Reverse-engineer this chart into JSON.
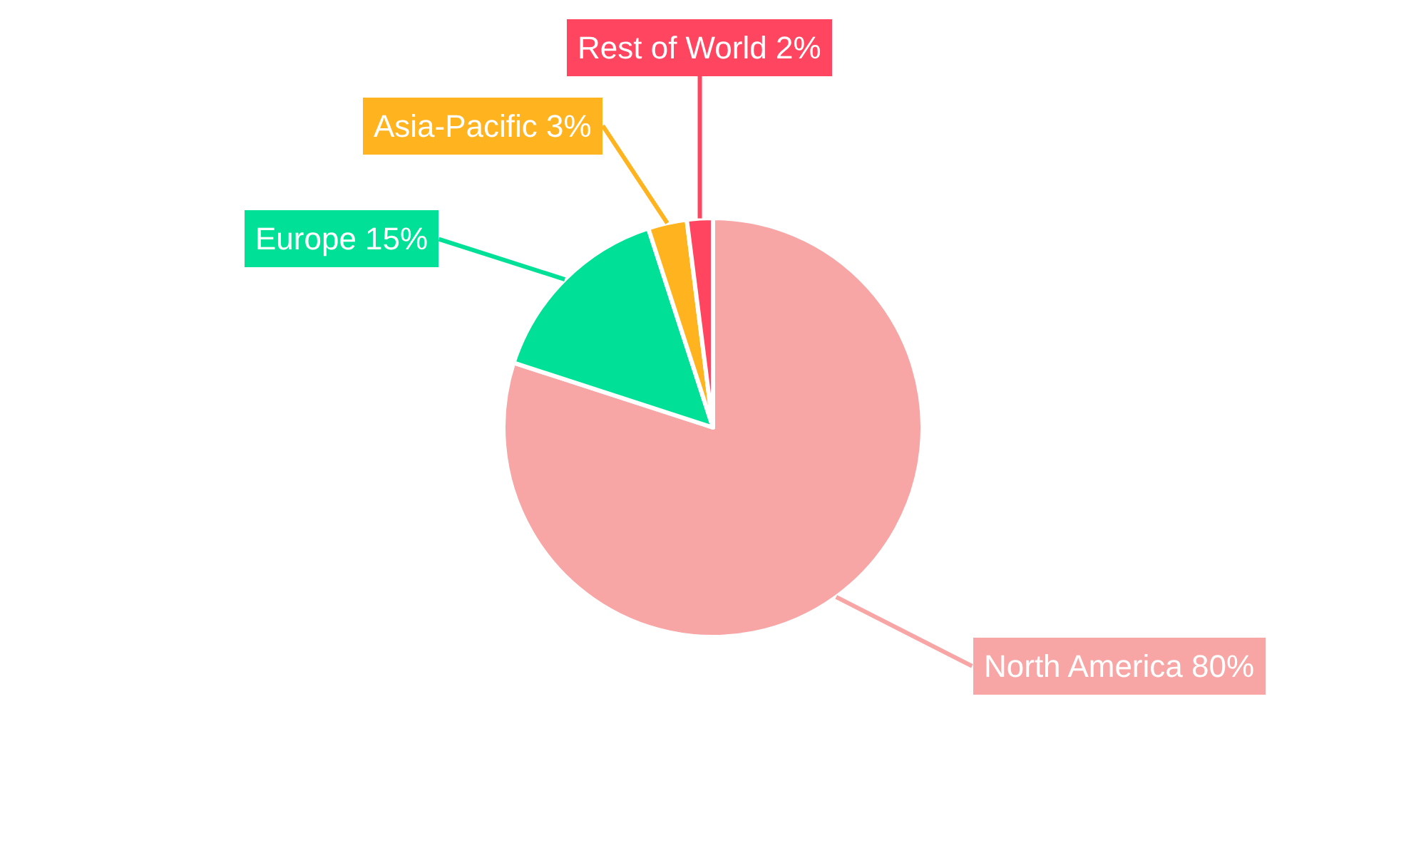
{
  "chart_data": {
    "type": "pie",
    "categories": [
      "North America",
      "Europe",
      "Asia-Pacific",
      "Rest of World"
    ],
    "values": [
      80,
      15,
      3,
      2
    ],
    "value_labels": [
      "80%",
      "15%",
      "3%",
      "2%"
    ],
    "colors": [
      "#f8a5a5",
      "#00e096",
      "#ffb31f",
      "#ff4560"
    ],
    "legend": false
  }
}
